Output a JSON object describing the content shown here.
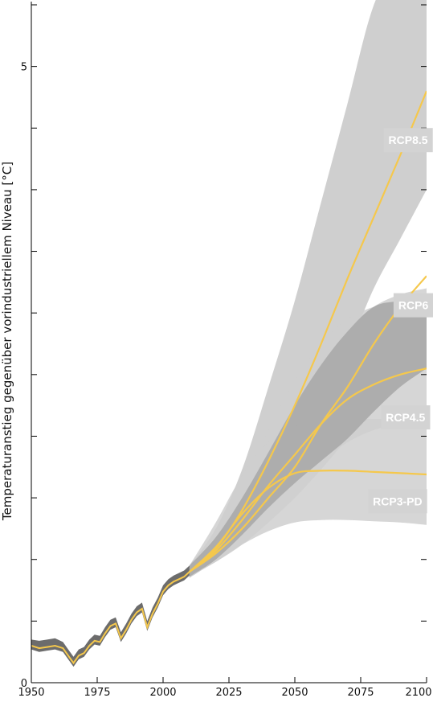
{
  "chart_data": {
    "type": "line",
    "ylabel": "Temperaturanstieg gegenüber vorindustriellem Niveau",
    "yunit": "[°C]",
    "xlim": [
      1950,
      2100
    ],
    "ylim": [
      0,
      5.5
    ],
    "xticks": [
      1950,
      1975,
      2000,
      2025,
      2050,
      2075,
      2100
    ],
    "xtick_labels": [
      "1950",
      "1975",
      "2000",
      "2025",
      "2050",
      "2075",
      "2100"
    ],
    "yticks": [
      0,
      0.5,
      1,
      1.5,
      2,
      2.5,
      3,
      3.5,
      4,
      4.5,
      5,
      5.5
    ],
    "ytick_labels": [
      "0",
      "",
      "",
      "",
      "",
      "",
      "",
      "",
      "",
      "",
      "5",
      ""
    ],
    "historical": {
      "x": [
        1950,
        1953,
        1956,
        1959,
        1962,
        1964,
        1966,
        1968,
        1970,
        1972,
        1974,
        1976,
        1978,
        1980,
        1982,
        1984,
        1986,
        1988,
        1990,
        1992,
        1994,
        1996,
        1998,
        2000,
        2002,
        2004,
        2006,
        2008,
        2010
      ],
      "values": [
        0.3,
        0.28,
        0.29,
        0.3,
        0.28,
        0.22,
        0.16,
        0.22,
        0.24,
        0.3,
        0.34,
        0.33,
        0.4,
        0.46,
        0.48,
        0.36,
        0.43,
        0.51,
        0.57,
        0.6,
        0.45,
        0.56,
        0.64,
        0.74,
        0.79,
        0.82,
        0.84,
        0.86,
        0.9
      ],
      "band_lower": [
        0.27,
        0.25,
        0.26,
        0.27,
        0.25,
        0.19,
        0.13,
        0.19,
        0.21,
        0.27,
        0.31,
        0.3,
        0.37,
        0.43,
        0.45,
        0.33,
        0.4,
        0.48,
        0.54,
        0.57,
        0.42,
        0.53,
        0.61,
        0.71,
        0.76,
        0.79,
        0.81,
        0.83,
        0.87
      ],
      "band_upper": [
        0.35,
        0.34,
        0.35,
        0.36,
        0.33,
        0.27,
        0.21,
        0.27,
        0.29,
        0.35,
        0.39,
        0.38,
        0.45,
        0.51,
        0.53,
        0.41,
        0.48,
        0.56,
        0.62,
        0.65,
        0.5,
        0.61,
        0.69,
        0.79,
        0.84,
        0.87,
        0.89,
        0.91,
        0.95
      ]
    },
    "x": [
      2010,
      2020,
      2030,
      2040,
      2050,
      2060,
      2070,
      2080,
      2090,
      2100
    ],
    "series": [
      {
        "name": "RCP8.5",
        "values": [
          0.9,
          1.09,
          1.4,
          1.8,
          2.25,
          2.75,
          3.28,
          3.78,
          4.28,
          4.8
        ],
        "band_upper": [
          0.95,
          1.25,
          1.73,
          2.4,
          3.1,
          3.9,
          4.7,
          5.5,
          5.85,
          5.85
        ],
        "band_lower": [
          0.85,
          1.0,
          1.25,
          1.6,
          1.95,
          2.3,
          2.7,
          3.2,
          3.6,
          4.0
        ]
      },
      {
        "name": "RCP6",
        "values": [
          0.9,
          1.05,
          1.25,
          1.5,
          1.75,
          2.1,
          2.4,
          2.75,
          3.05,
          3.3
        ],
        "band_upper": [
          0.95,
          1.18,
          1.5,
          1.87,
          2.25,
          2.58,
          2.85,
          3.05,
          3.15,
          3.2
        ],
        "band_lower": [
          0.86,
          0.98,
          1.12,
          1.3,
          1.5,
          1.73,
          1.98,
          2.2,
          2.4,
          2.55
        ]
      },
      {
        "name": "RCP4.5",
        "values": [
          0.9,
          1.07,
          1.32,
          1.6,
          1.85,
          2.1,
          2.3,
          2.42,
          2.5,
          2.55
        ],
        "band_upper": [
          0.95,
          1.22,
          1.6,
          2.05,
          2.45,
          2.75,
          2.95,
          3.05,
          3.1,
          3.15
        ],
        "band_lower": [
          0.86,
          1.0,
          1.2,
          1.42,
          1.62,
          1.8,
          1.95,
          2.05,
          2.1,
          2.15
        ]
      },
      {
        "name": "RCP3-PD",
        "values": [
          0.9,
          1.1,
          1.37,
          1.58,
          1.7,
          1.72,
          1.72,
          1.71,
          1.7,
          1.69
        ],
        "band_upper": [
          0.95,
          1.3,
          1.68,
          1.95,
          2.08,
          2.12,
          2.14,
          2.14,
          2.14,
          2.14
        ],
        "band_lower": [
          0.86,
          0.98,
          1.12,
          1.23,
          1.3,
          1.32,
          1.32,
          1.31,
          1.3,
          1.28
        ]
      }
    ],
    "grid": false,
    "legend": "inline labels at right",
    "colors": {
      "series_line": "#f5c84c",
      "scenario_band": "#cfcfcf",
      "overlap_band": "#a9a9a9",
      "historical_band": "#6c6c6c",
      "label_bg": "#d3d3d3",
      "axis": "#000000"
    }
  }
}
